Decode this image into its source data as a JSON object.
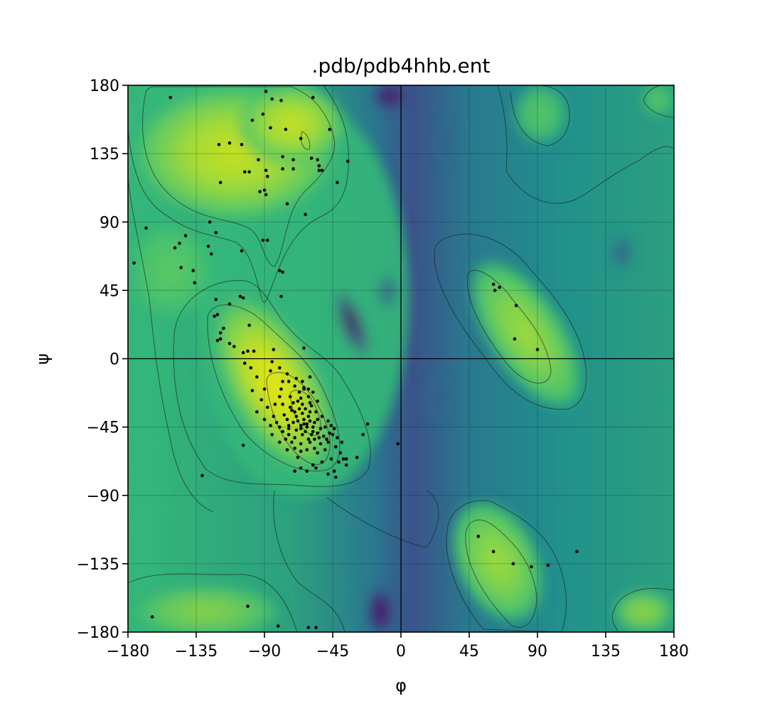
{
  "chart_data": {
    "type": "scatter",
    "title": ".pdb/pdb4hhb.ent",
    "xlabel": "φ",
    "ylabel": "ψ",
    "xlim": [
      -180,
      180
    ],
    "ylim": [
      -180,
      180
    ],
    "grid": true,
    "background": "Ramachandran density heatmap (viridis) with contour lines",
    "xticks": [
      -180,
      -135,
      -90,
      -45,
      0,
      45,
      90,
      135,
      180
    ],
    "yticks": [
      -180,
      -135,
      -90,
      -45,
      0,
      45,
      90,
      135,
      180
    ],
    "xtick_labels": [
      "−180",
      "−135",
      "−90",
      "−45",
      "0",
      "45",
      "90",
      "135",
      "180"
    ],
    "ytick_labels": [
      "−180",
      "−135",
      "−90",
      "−45",
      "0",
      "45",
      "90",
      "135",
      "180"
    ],
    "point_color": "#000000",
    "points": [
      [
        -152,
        172
      ],
      [
        -89,
        176
      ],
      [
        -85,
        171
      ],
      [
        -79,
        170
      ],
      [
        -58,
        172
      ],
      [
        -66,
        145
      ],
      [
        -47,
        151
      ],
      [
        -76,
        151
      ],
      [
        -86,
        152
      ],
      [
        -91,
        161
      ],
      [
        -98,
        157
      ],
      [
        -120,
        141
      ],
      [
        -113,
        142
      ],
      [
        -105,
        141
      ],
      [
        -78,
        133
      ],
      [
        -71,
        131
      ],
      [
        -59,
        132
      ],
      [
        -55,
        131
      ],
      [
        -54,
        127
      ],
      [
        -78,
        125
      ],
      [
        -71,
        125
      ],
      [
        -54,
        124
      ],
      [
        -52,
        124
      ],
      [
        -89,
        124
      ],
      [
        -94,
        131
      ],
      [
        -103,
        123
      ],
      [
        -119,
        116
      ],
      [
        -100,
        123
      ],
      [
        -88,
        120
      ],
      [
        -90,
        111
      ],
      [
        -93,
        110
      ],
      [
        -89,
        108
      ],
      [
        -75,
        102
      ],
      [
        -42,
        116
      ],
      [
        -35,
        130
      ],
      [
        -63,
        95
      ],
      [
        -168,
        86
      ],
      [
        -142,
        81
      ],
      [
        -146,
        76
      ],
      [
        -126,
        90
      ],
      [
        -122,
        83
      ],
      [
        -125,
        69
      ],
      [
        -127,
        74
      ],
      [
        -137,
        58
      ],
      [
        -136,
        50
      ],
      [
        -149,
        73
      ],
      [
        -176,
        63
      ],
      [
        -145,
        60
      ],
      [
        -105,
        71
      ],
      [
        -91,
        78
      ],
      [
        -88,
        78
      ],
      [
        -80,
        58
      ],
      [
        -78,
        57
      ],
      [
        -122,
        39
      ],
      [
        -106,
        41
      ],
      [
        -104,
        40
      ],
      [
        -113,
        36
      ],
      [
        -121,
        29
      ],
      [
        -79,
        41
      ],
      [
        -123,
        28
      ],
      [
        -119,
        17
      ],
      [
        -119,
        13
      ],
      [
        -121,
        12
      ],
      [
        -113,
        10
      ],
      [
        -117,
        20
      ],
      [
        -100,
        22
      ],
      [
        -110,
        8
      ],
      [
        -104,
        4
      ],
      [
        -101,
        5
      ],
      [
        -97,
        5
      ],
      [
        -103,
        -3
      ],
      [
        -99,
        -6
      ],
      [
        -95,
        -12
      ],
      [
        -98,
        -21
      ],
      [
        -85,
        -2
      ],
      [
        -84,
        6
      ],
      [
        -86,
        -8
      ],
      [
        -80,
        -6
      ],
      [
        -75,
        -10
      ],
      [
        -90,
        -20
      ],
      [
        -78,
        -15
      ],
      [
        -80,
        -25
      ],
      [
        -70,
        -18
      ],
      [
        -65,
        -15
      ],
      [
        -60,
        -12
      ],
      [
        -58,
        -22
      ],
      [
        -55,
        -28
      ],
      [
        -65,
        -30
      ],
      [
        -70,
        -35
      ],
      [
        -60,
        -35
      ],
      [
        -55,
        -40
      ],
      [
        -50,
        -45
      ],
      [
        -45,
        -50
      ],
      [
        -75,
        -40
      ],
      [
        -80,
        -45
      ],
      [
        -85,
        -50
      ],
      [
        -72,
        -55
      ],
      [
        -65,
        -50
      ],
      [
        -60,
        -55
      ],
      [
        -50,
        -60
      ],
      [
        -55,
        -62
      ],
      [
        -62,
        -60
      ],
      [
        -68,
        -65
      ],
      [
        -75,
        -60
      ],
      [
        -80,
        -55
      ],
      [
        -90,
        -40
      ],
      [
        -95,
        -35
      ],
      [
        -92,
        -27
      ],
      [
        -88,
        -32
      ],
      [
        -84,
        -38
      ],
      [
        -78,
        -30
      ],
      [
        -73,
        -25
      ],
      [
        -68,
        -28
      ],
      [
        -64,
        -40
      ],
      [
        -62,
        -45
      ],
      [
        -58,
        -48
      ],
      [
        -54,
        -52
      ],
      [
        -48,
        -55
      ],
      [
        -43,
        -58
      ],
      [
        -40,
        -62
      ],
      [
        -38,
        -66
      ],
      [
        -36,
        -70
      ],
      [
        -46,
        -66
      ],
      [
        -52,
        -68
      ],
      [
        -58,
        -70
      ],
      [
        -66,
        -72
      ],
      [
        -70,
        -74
      ],
      [
        -44,
        -74
      ],
      [
        -48,
        -76
      ],
      [
        -56,
        -72
      ],
      [
        -62,
        -74
      ],
      [
        -67,
        -33
      ],
      [
        -71,
        -42
      ],
      [
        -66,
        -44
      ],
      [
        -61,
        -38
      ],
      [
        -57,
        -42
      ],
      [
        -63,
        -48
      ],
      [
        -69,
        -47
      ],
      [
        -74,
        -46
      ],
      [
        -77,
        -37
      ],
      [
        -73,
        -32
      ],
      [
        -69,
        -38
      ],
      [
        -65,
        -36
      ],
      [
        -59,
        -31
      ],
      [
        -56,
        -35
      ],
      [
        -52,
        -38
      ],
      [
        -48,
        -41
      ],
      [
        -46,
        -44
      ],
      [
        -53,
        -46
      ],
      [
        -57,
        -53
      ],
      [
        -61,
        -53
      ],
      [
        -66,
        -56
      ],
      [
        -70,
        -52
      ],
      [
        -74,
        -50
      ],
      [
        -78,
        -48
      ],
      [
        -82,
        -42
      ],
      [
        -86,
        -44
      ],
      [
        -83,
        -30
      ],
      [
        -79,
        -20
      ],
      [
        -74,
        -15
      ],
      [
        -69,
        -13
      ],
      [
        -64,
        -20
      ],
      [
        -61,
        -25
      ],
      [
        -67,
        -22
      ],
      [
        -71,
        -29
      ],
      [
        -60,
        -29
      ],
      [
        -63,
        -33
      ],
      [
        -68,
        -41
      ],
      [
        -64,
        -43
      ],
      [
        -60,
        -41
      ],
      [
        -58,
        -45
      ],
      [
        -62,
        -43
      ],
      [
        -66,
        -46
      ],
      [
        -59,
        -50
      ],
      [
        -55,
        -49
      ],
      [
        -51,
        -51
      ],
      [
        -47,
        -49
      ],
      [
        -44,
        -46
      ],
      [
        -42,
        -52
      ],
      [
        -39,
        -55
      ],
      [
        -41,
        -68
      ],
      [
        -104,
        -57
      ],
      [
        -43,
        -78
      ],
      [
        -36,
        -66
      ],
      [
        -29,
        -65
      ],
      [
        -25,
        -50
      ],
      [
        -22,
        -43
      ],
      [
        -2,
        -56
      ],
      [
        -64,
        -19
      ],
      [
        -61,
        -20
      ],
      [
        -66,
        -26
      ],
      [
        -72,
        -34
      ],
      [
        -74,
        -44
      ],
      [
        -76,
        -53
      ],
      [
        -70,
        -59
      ],
      [
        -66,
        -61
      ],
      [
        -57,
        -59
      ],
      [
        -53,
        -56
      ],
      [
        -49,
        -53
      ],
      [
        -131,
        -77
      ],
      [
        -64,
        7
      ],
      [
        61,
        49
      ],
      [
        65,
        47
      ],
      [
        62,
        45
      ],
      [
        76,
        35
      ],
      [
        75,
        13
      ],
      [
        90,
        6
      ],
      [
        51,
        -117
      ],
      [
        61,
        -127
      ],
      [
        74,
        -135
      ],
      [
        86,
        -137
      ],
      [
        97,
        -136
      ],
      [
        116,
        -127
      ],
      [
        -164,
        -170
      ],
      [
        -101,
        -163
      ],
      [
        -81,
        -176
      ],
      [
        -61,
        -177
      ],
      [
        -56,
        -177
      ]
    ]
  }
}
